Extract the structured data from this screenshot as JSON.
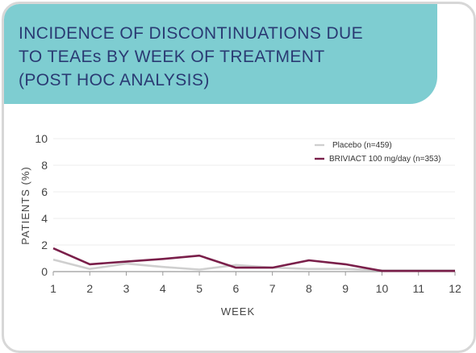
{
  "header": {
    "title_lines": [
      "INCIDENCE OF DISCONTINUATIONS DUE",
      "TO TEAEs BY WEEK OF TREATMENT",
      "(POST HOC ANALYSIS)"
    ]
  },
  "colors": {
    "banner": "#7ecdd1",
    "title_text": "#2a3a73",
    "placebo": "#cfcfcf",
    "briviact": "#7a1f4a",
    "grid": "#ececec",
    "border": "#d7d7d7"
  },
  "chart_data": {
    "type": "line",
    "xlabel": "WEEK",
    "ylabel": "PATIENTS (%)",
    "x": [
      1,
      2,
      3,
      4,
      5,
      6,
      7,
      8,
      9,
      10,
      11,
      12
    ],
    "ylim": [
      0,
      10
    ],
    "yticks": [
      0,
      2,
      4,
      6,
      8,
      10
    ],
    "grid": true,
    "legend_position": "top-right",
    "series": [
      {
        "name": "Placebo (n=459)",
        "color": "#cfcfcf",
        "values": [
          0.9,
          0.2,
          0.6,
          0.35,
          0.15,
          0.5,
          0.3,
          0.2,
          0.2,
          0.1,
          0.1,
          0.1
        ]
      },
      {
        "name": "BRIVIACT 100 mg/day (n=353)",
        "color": "#7a1f4a",
        "values": [
          1.75,
          0.55,
          0.75,
          0.95,
          1.2,
          0.3,
          0.3,
          0.85,
          0.55,
          0.05,
          0.05,
          0.05
        ]
      }
    ]
  }
}
